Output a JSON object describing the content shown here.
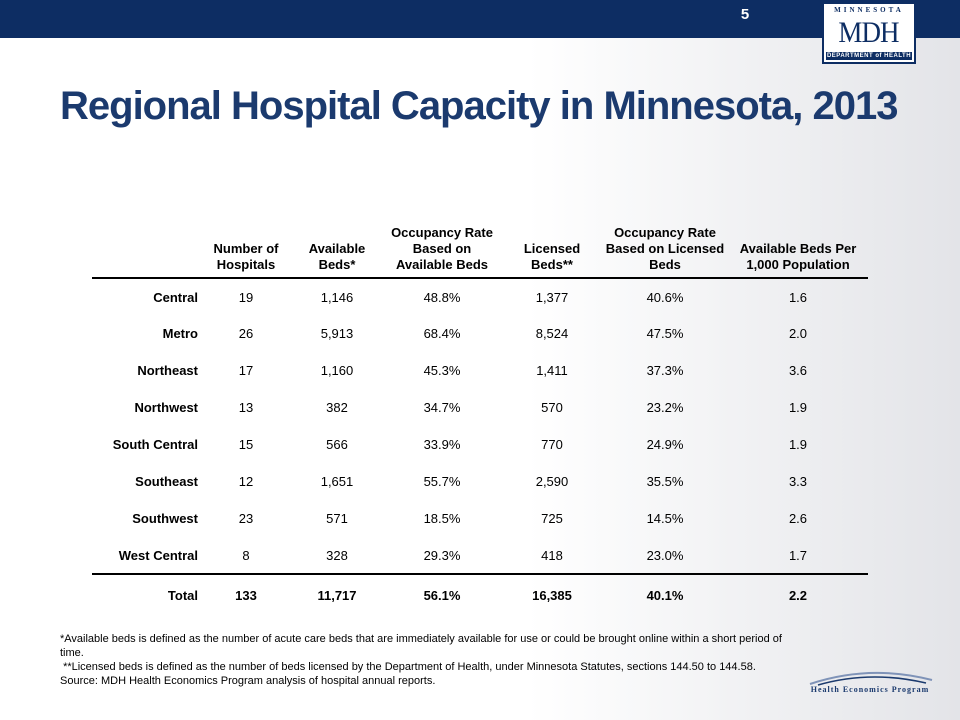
{
  "slide_number": "5",
  "logo": {
    "state": "MINNESOTA",
    "main": "MDH",
    "dept": "DEPARTMENT of HEALTH"
  },
  "title": "Regional Hospital Capacity in Minnesota, 2013",
  "table": {
    "headers": [
      "",
      "Number of Hospitals",
      "Available Beds*",
      "Occupancy Rate Based on Available Beds",
      "Licensed Beds**",
      "Occupancy Rate Based on Licensed Beds",
      "Available Beds Per 1,000 Population"
    ],
    "rows": [
      [
        "Central",
        "19",
        "1,146",
        "48.8%",
        "1,377",
        "40.6%",
        "1.6"
      ],
      [
        "Metro",
        "26",
        "5,913",
        "68.4%",
        "8,524",
        "47.5%",
        "2.0"
      ],
      [
        "Northeast",
        "17",
        "1,160",
        "45.3%",
        "1,411",
        "37.3%",
        "3.6"
      ],
      [
        "Northwest",
        "13",
        "382",
        "34.7%",
        "570",
        "23.2%",
        "1.9"
      ],
      [
        "South Central",
        "15",
        "566",
        "33.9%",
        "770",
        "24.9%",
        "1.9"
      ],
      [
        "Southeast",
        "12",
        "1,651",
        "55.7%",
        "2,590",
        "35.5%",
        "3.3"
      ],
      [
        "Southwest",
        "23",
        "571",
        "18.5%",
        "725",
        "14.5%",
        "2.6"
      ],
      [
        "West Central",
        "8",
        "328",
        "29.3%",
        "418",
        "23.0%",
        "1.7"
      ]
    ],
    "total": [
      "Total",
      "133",
      "11,717",
      "56.1%",
      "16,385",
      "40.1%",
      "2.2"
    ]
  },
  "footnotes": [
    "*Available beds is defined as the number of acute care beds that are immediately available for use or could be brought online within a short period of time.",
    " **Licensed beds is defined as the number of beds licensed by the Department of Health, under Minnesota Statutes, sections 144.50 to 144.58.",
    "Source: MDH Health Economics Program analysis of hospital annual reports."
  ],
  "hep_logo_text": "Health Economics Program",
  "colors": {
    "navy": "#0d2d63",
    "title_blue": "#1b3a6e"
  }
}
